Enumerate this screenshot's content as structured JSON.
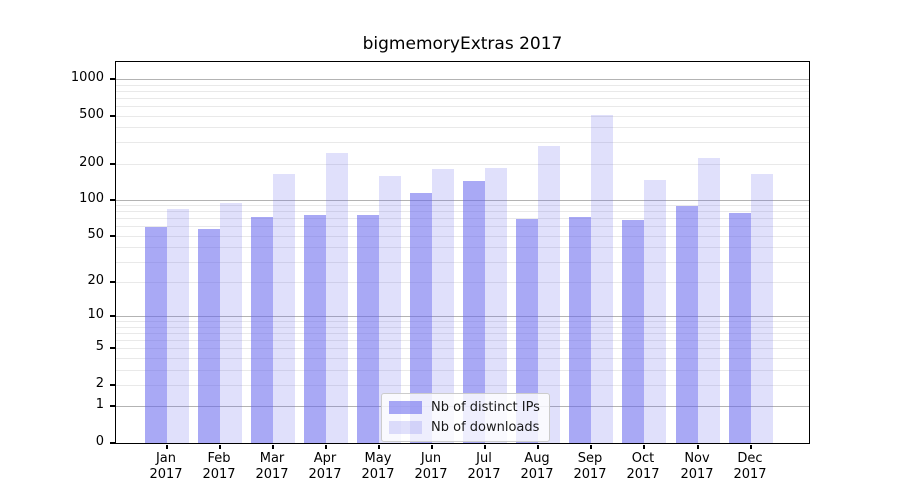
{
  "chart_data": {
    "type": "bar",
    "title": "bigmemoryExtras 2017",
    "categories": [
      "Jan 2017",
      "Feb 2017",
      "Mar 2017",
      "Apr 2017",
      "May 2017",
      "Jun 2017",
      "Jul 2017",
      "Aug 2017",
      "Sep 2017",
      "Oct 2017",
      "Nov 2017",
      "Dec 2017"
    ],
    "series": [
      {
        "name": "Nb of distinct IPs",
        "values": [
          60,
          58,
          73,
          76,
          76,
          116,
          145,
          70,
          73,
          69,
          89,
          78
        ],
        "color": "#6363ed",
        "opacity": 0.55,
        "rendered_color": "#a9a9f4"
      },
      {
        "name": "Nb of downloads",
        "values": [
          84,
          95,
          165,
          245,
          160,
          182,
          186,
          280,
          510,
          147,
          225,
          165
        ],
        "color": "#6363ed",
        "opacity": 0.2,
        "rendered_color": "#dfdffb"
      }
    ],
    "xlabel": "",
    "ylabel": "",
    "y_scale": "log1p",
    "y_ticks": [
      0,
      1,
      2,
      5,
      10,
      20,
      50,
      100,
      200,
      500,
      1000
    ],
    "ylim": [
      0,
      1100
    ],
    "grid": "horizontal major+minor (log decades darker)",
    "legend_position": "inside, lower center"
  },
  "colors": {
    "spine": "#000000",
    "major_grid": "#b3b3b3",
    "minor_grid": "#e9e9e9",
    "legend_border": "#cccccc",
    "text": "#000000"
  }
}
